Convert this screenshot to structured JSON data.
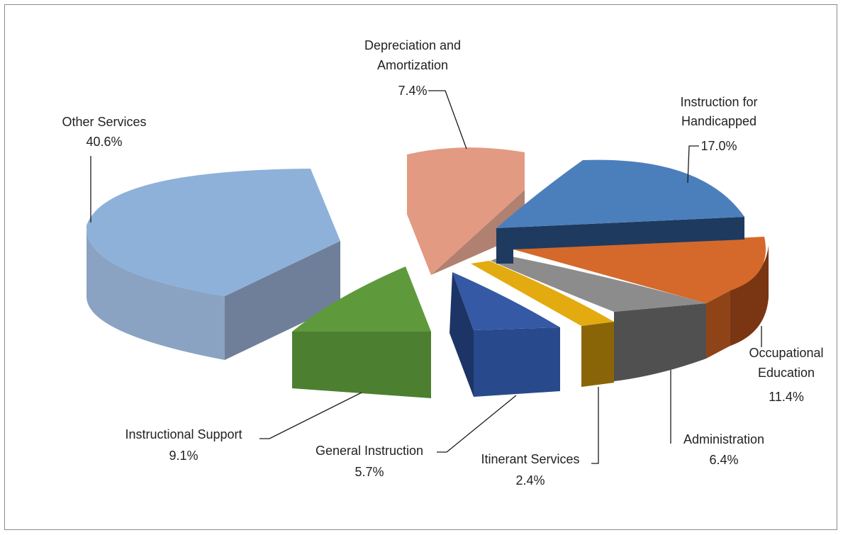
{
  "chart_data": {
    "type": "pie",
    "style": "3d-exploded",
    "slices": [
      {
        "name": "Other Services",
        "value": 40.6,
        "value_label": "40.6%",
        "color": "#8eb1da"
      },
      {
        "name": "Depreciation and Amortization",
        "value": 7.4,
        "value_label": "7.4%",
        "color": "#e39a82"
      },
      {
        "name": "Instruction for Handicapped",
        "value": 17.0,
        "value_label": "17.0%",
        "color": "#4b7fbc"
      },
      {
        "name": "Occupational Education",
        "value": 11.4,
        "value_label": "11.4%",
        "color": "#d4692b"
      },
      {
        "name": "Administration",
        "value": 6.4,
        "value_label": "6.4%",
        "color": "#8c8c8c"
      },
      {
        "name": "Itinerant Services",
        "value": 2.4,
        "value_label": "2.4%",
        "color": "#e3ab0f"
      },
      {
        "name": "General Instruction",
        "value": 5.7,
        "value_label": "5.7%",
        "color": "#3559a5"
      },
      {
        "name": "Instructional Support",
        "value": 9.1,
        "value_label": "9.1%",
        "color": "#5e9a3c"
      }
    ]
  },
  "labels": {
    "other_services": {
      "line1": "Other Services",
      "value": "40.6%"
    },
    "depreciation": {
      "line1": "Depreciation and",
      "line2": "Amortization",
      "value": "7.4%"
    },
    "handicapped": {
      "line1": "Instruction for",
      "line2": "Handicapped",
      "value": "17.0%"
    },
    "occupational": {
      "line1": "Occupational",
      "line2": "Education",
      "value": "11.4%"
    },
    "administration": {
      "line1": "Administration",
      "value": "6.4%"
    },
    "itinerant": {
      "line1": "Itinerant Services",
      "value": "2.4%"
    },
    "general": {
      "line1": "General Instruction",
      "value": "5.7%"
    },
    "support": {
      "line1": "Instructional Support",
      "value": "9.1%"
    }
  }
}
